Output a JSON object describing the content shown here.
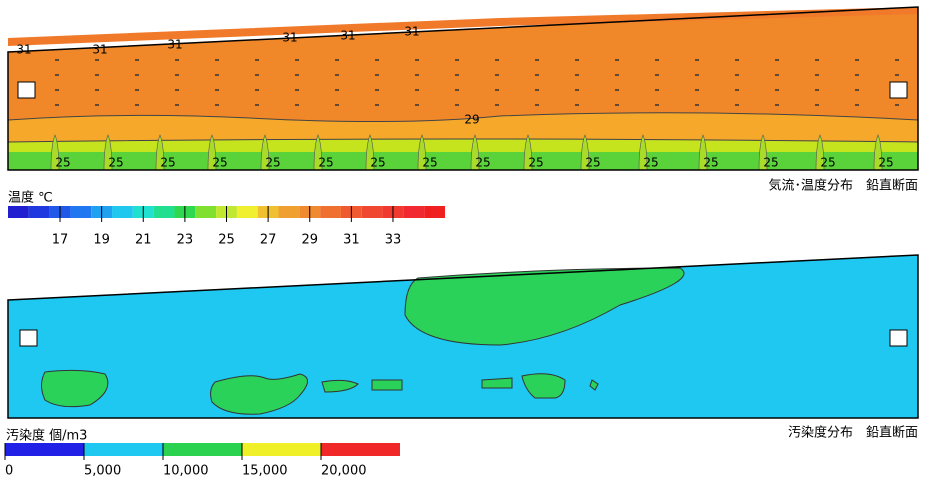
{
  "temperature_panel": {
    "contour_labels_31": [
      "31",
      "31",
      "31",
      "31",
      "31",
      "31"
    ],
    "contour_label_29": "29",
    "contour_labels_25": [
      "25",
      "25",
      "25",
      "25",
      "25",
      "25",
      "25",
      "25",
      "25",
      "25",
      "25",
      "25",
      "25",
      "25",
      "25",
      "25"
    ],
    "caption": "気流･温度分布　鉛直断面",
    "legend": {
      "title": "温度 ℃",
      "ticks": [
        "17",
        "19",
        "21",
        "23",
        "25",
        "27",
        "29",
        "31",
        "33"
      ]
    }
  },
  "pollution_panel": {
    "caption": "汚染度分布　鉛直断面",
    "legend": {
      "title": "汚染度 個/m3",
      "ticks": [
        "0",
        "5,000",
        "10,000",
        "15,000",
        "20,000"
      ]
    }
  }
}
